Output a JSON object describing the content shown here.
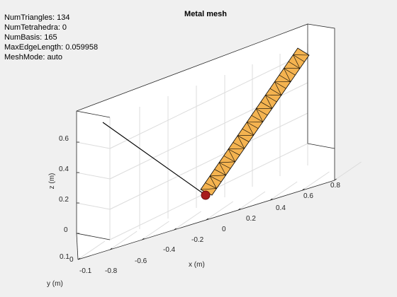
{
  "figure": {
    "title": "Metal mesh",
    "info_lines": [
      "NumTriangles: 134",
      "NumTetrahedra: 0",
      "NumBasis: 165",
      "MaxEdgeLength: 0.059958",
      "MeshMode: auto"
    ]
  },
  "axes": {
    "xlabel": "x (m)",
    "ylabel": "y (m)",
    "zlabel": "z (m)",
    "x_ticks": [
      "-0.8",
      "-0.6",
      "-0.4",
      "-0.2",
      "0",
      "0.2",
      "0.4",
      "0.6",
      "0.8"
    ],
    "y_ticks": [
      "-0.1",
      "0",
      "0.1"
    ],
    "z_ticks": [
      "0",
      "0.2",
      "0.4",
      "0.6"
    ],
    "grid": true
  },
  "colors": {
    "background": "#f0f0f0",
    "axes_face": "#ffffff",
    "grid": "#dcdcdc",
    "box_edge": "#262626",
    "mesh_face": "#f4b350",
    "mesh_edge": "#000000",
    "feed": "#a81c1c"
  }
}
